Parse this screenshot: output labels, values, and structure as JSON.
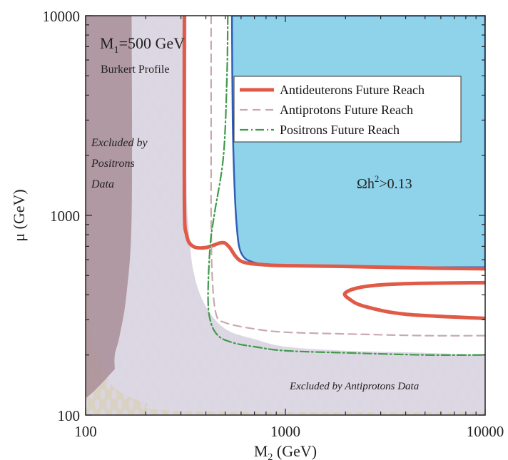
{
  "chart_data": {
    "type": "area",
    "x_scale": "log",
    "y_scale": "log",
    "xlim": [
      100,
      10000
    ],
    "ylim": [
      100,
      10000
    ],
    "xticks": [
      "100",
      "1000",
      "10000"
    ],
    "yticks": [
      "100",
      "1000",
      "10000"
    ],
    "xlabel_main": "M",
    "xlabel_sub": "2",
    "xlabel_unit": " (GeV)",
    "ylabel_main": "μ",
    "ylabel_unit": " (GeV)",
    "annotations": {
      "mass_main": "M",
      "mass_sub": "1",
      "mass_value": "=500 GeV",
      "profile": "Burkert Profile",
      "positrons_excl_1": "Excluded by",
      "positrons_excl_2": "Positrons",
      "positrons_excl_3": "Data",
      "antiprotons_excl": "Excluded by Antiprotons Data",
      "relic_main": "Ωh",
      "relic_sup": "2",
      "relic_rest": ">0.13"
    },
    "legend": {
      "placement": "top-right",
      "entries": [
        {
          "label": "Antideuterons Future Reach",
          "color": "#e05a48",
          "style": "solid"
        },
        {
          "label": "Antiprotons Future Reach",
          "color": "#c9a9ae",
          "style": "dashed"
        },
        {
          "label": "Positrons Future Reach",
          "color": "#3f9a4a",
          "style": "dashdot"
        }
      ]
    },
    "regions": {
      "relic_excluded": {
        "color": "#8fd3ea",
        "boundary_x": [
          540,
          545,
          555,
          570,
          600,
          700,
          1000,
          2000,
          5000,
          10000
        ],
        "boundary_y": [
          10000,
          3000,
          1500,
          900,
          650,
          580,
          560,
          555,
          550,
          550
        ]
      },
      "antiprotons_excluded": {
        "color": "#d0cbd9",
        "boundary_x": [
          320,
          320,
          330,
          350,
          400,
          500,
          700,
          1000,
          2000,
          5000,
          10000
        ],
        "boundary_y": [
          10000,
          1500,
          800,
          500,
          350,
          270,
          240,
          220,
          210,
          205,
          200
        ]
      },
      "positrons_excluded": {
        "color": "#a88e96",
        "boundary_x": [
          170,
          170,
          160,
          148,
          140,
          140
        ],
        "boundary_y": [
          10000,
          1000,
          400,
          250,
          200,
          170
        ]
      },
      "sensitivity_edge": {
        "color": "#f3e27a",
        "boundary_x": [
          100,
          105,
          115,
          130,
          150,
          200,
          300,
          10000
        ],
        "boundary_y": [
          10000,
          300,
          200,
          150,
          130,
          115,
          105,
          103
        ]
      }
    },
    "series": [
      {
        "name": "Antideuterons Future Reach",
        "x": [
          312,
          312,
          320,
          345,
          400,
          480,
          520,
          600,
          800,
          1000,
          2000,
          5000,
          10000
        ],
        "y": [
          10000,
          1200,
          800,
          700,
          690,
          730,
          700,
          590,
          565,
          560,
          555,
          545,
          540
        ]
      },
      {
        "name": "Antideuterons Future Reach (island)",
        "x": [
          10000,
          4000,
          2500,
          2000,
          2100,
          2500,
          4000,
          10000
        ],
        "y": [
          460,
          455,
          440,
          410,
          380,
          350,
          320,
          305
        ]
      },
      {
        "name": "Antiprotons Future Reach",
        "x": [
          425,
          425,
          425,
          430,
          450,
          500,
          700,
          1000,
          2000,
          5000,
          10000
        ],
        "y": [
          10000,
          2000,
          1000,
          500,
          320,
          290,
          270,
          260,
          255,
          250,
          250
        ]
      },
      {
        "name": "Positrons Future Reach",
        "x": [
          515,
          510,
          490,
          440,
          420,
          410,
          420,
          460,
          550,
          700,
          1000,
          2000,
          5000,
          10000
        ],
        "y": [
          10000,
          5000,
          2000,
          1000,
          700,
          400,
          300,
          250,
          230,
          220,
          210,
          205,
          200,
          200
        ]
      }
    ]
  }
}
